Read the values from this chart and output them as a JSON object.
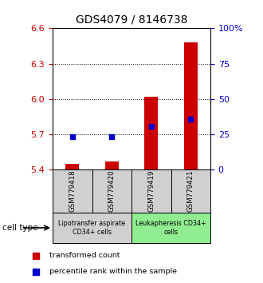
{
  "title": "GDS4079 / 8146738",
  "samples": [
    "GSM779418",
    "GSM779420",
    "GSM779419",
    "GSM779421"
  ],
  "red_values": [
    5.45,
    5.47,
    6.02,
    6.48
  ],
  "blue_values": [
    5.68,
    5.68,
    5.77,
    5.83
  ],
  "ymin": 5.4,
  "ymax": 6.6,
  "yticks_left": [
    5.4,
    5.7,
    6.0,
    6.3,
    6.6
  ],
  "yticks_right_vals": [
    0,
    25,
    50,
    75,
    100
  ],
  "yticks_right_labels": [
    "0",
    "25",
    "50",
    "75",
    "100%"
  ],
  "bar_base": 5.4,
  "bar_width": 0.35,
  "bar_color": "#cc0000",
  "blue_color": "#0000cc",
  "group1_label": "Lipotransfer aspirate\nCD34+ cells",
  "group2_label": "Leukapheresis CD34+\ncells",
  "cell_type_label": "cell type",
  "legend_red": "transformed count",
  "legend_blue": "percentile rank within the sample",
  "group1_color": "#d0d0d0",
  "group2_color": "#90ee90",
  "title_fontsize": 10,
  "tick_fontsize": 8,
  "label_fontsize": 7.5
}
